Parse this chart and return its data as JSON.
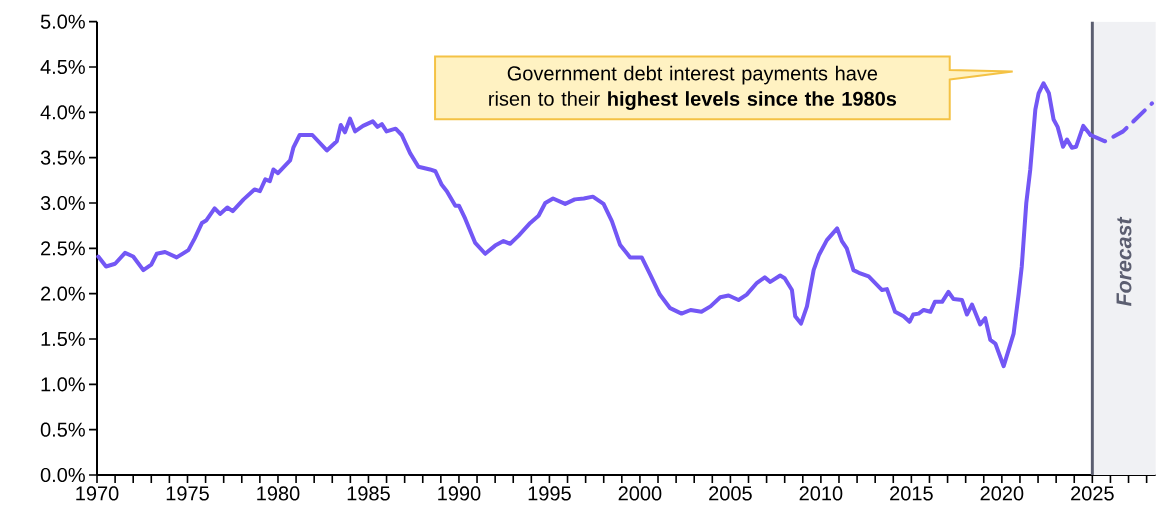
{
  "chart_data": {
    "type": "line",
    "series": [
      {
        "color": "#7357f5",
        "line_style": "solid",
        "x": [
          1970.07,
          1970.5,
          1971.0,
          1971.55,
          1972.0,
          1972.56,
          1973.0,
          1973.3,
          1973.76,
          1974.4,
          1975.05,
          1975.4,
          1975.8,
          1976.05,
          1976.5,
          1976.8,
          1977.2,
          1977.5,
          1978.1,
          1978.7,
          1979.0,
          1979.3,
          1979.55,
          1979.75,
          1980.0,
          1980.67,
          1980.85,
          1981.2,
          1981.9,
          1982.7,
          1983.25,
          1983.47,
          1983.7,
          1983.98,
          1984.26,
          1984.7,
          1985.24,
          1985.5,
          1985.74,
          1986.0,
          1986.5,
          1986.84,
          1987.3,
          1987.76,
          1988.4,
          1988.7,
          1989.05,
          1989.33,
          1989.8,
          1990.0,
          1990.34,
          1990.9,
          1991.45,
          1992.0,
          1992.46,
          1992.83,
          1993.3,
          1993.94,
          1994.4,
          1994.77,
          1995.2,
          1995.87,
          1996.4,
          1996.9,
          1997.4,
          1997.99,
          1998.45,
          1998.9,
          1999.46,
          2000.1,
          2000.57,
          2001.1,
          2001.67,
          2002.3,
          2002.8,
          2003.4,
          2003.9,
          2004.44,
          2004.9,
          2005.45,
          2005.9,
          2006.47,
          2006.9,
          2007.2,
          2007.75,
          2008.0,
          2008.4,
          2008.58,
          2008.9,
          2009.23,
          2009.6,
          2009.9,
          2010.33,
          2010.9,
          2011.16,
          2011.43,
          2011.8,
          2012.1,
          2012.64,
          2013.38,
          2013.65,
          2014.1,
          2014.57,
          2014.9,
          2015.1,
          2015.4,
          2015.68,
          2016.05,
          2016.3,
          2016.7,
          2017.05,
          2017.33,
          2017.8,
          2018.07,
          2018.35,
          2018.8,
          2019.08,
          2019.36,
          2019.64,
          2020.1,
          2020.65,
          2020.93,
          2021.1,
          2021.35,
          2021.57,
          2021.85,
          2022.03,
          2022.3,
          2022.6,
          2022.86,
          2023.08,
          2023.38,
          2023.6,
          2023.87,
          2024.1,
          2024.5,
          2024.9
        ],
        "values": [
          2.41,
          2.3,
          2.33,
          2.45,
          2.41,
          2.26,
          2.32,
          2.44,
          2.46,
          2.4,
          2.48,
          2.61,
          2.78,
          2.81,
          2.94,
          2.88,
          2.95,
          2.91,
          3.04,
          3.15,
          3.13,
          3.26,
          3.24,
          3.37,
          3.33,
          3.47,
          3.61,
          3.75,
          3.75,
          3.58,
          3.68,
          3.86,
          3.78,
          3.93,
          3.79,
          3.85,
          3.9,
          3.84,
          3.87,
          3.79,
          3.82,
          3.75,
          3.55,
          3.4,
          3.37,
          3.35,
          3.2,
          3.13,
          2.97,
          2.97,
          2.83,
          2.56,
          2.44,
          2.53,
          2.58,
          2.55,
          2.64,
          2.78,
          2.86,
          3.0,
          3.05,
          2.99,
          3.04,
          3.05,
          3.07,
          2.99,
          2.8,
          2.54,
          2.4,
          2.4,
          2.21,
          1.99,
          1.84,
          1.78,
          1.82,
          1.8,
          1.86,
          1.96,
          1.98,
          1.93,
          1.99,
          2.12,
          2.18,
          2.13,
          2.2,
          2.17,
          2.04,
          1.75,
          1.67,
          1.86,
          2.26,
          2.43,
          2.59,
          2.72,
          2.58,
          2.5,
          2.26,
          2.23,
          2.19,
          2.04,
          2.05,
          1.8,
          1.75,
          1.69,
          1.77,
          1.78,
          1.82,
          1.8,
          1.91,
          1.91,
          2.02,
          1.94,
          1.93,
          1.77,
          1.88,
          1.66,
          1.73,
          1.49,
          1.45,
          1.2,
          1.56,
          2.0,
          2.3,
          3.0,
          3.37,
          4.03,
          4.21,
          4.32,
          4.21,
          3.92,
          3.84,
          3.62,
          3.7,
          3.61,
          3.62,
          3.85,
          3.75
        ]
      },
      {
        "color": "#7357f5",
        "line_style": "dashed",
        "x": [
          2024.9,
          2025.7,
          2026.7,
          2028.3
        ],
        "values": [
          3.75,
          3.68,
          3.79,
          4.1
        ]
      }
    ],
    "xlim": [
      1970,
      2028.5
    ],
    "xticks": [
      1970,
      {
        "value": 1971,
        "label": null
      },
      {
        "value": 1972,
        "label": null
      },
      {
        "value": 1973,
        "label": null
      },
      {
        "value": 1974,
        "label": null
      },
      1975,
      {
        "value": 1976,
        "label": null
      },
      {
        "value": 1977,
        "label": null
      },
      {
        "value": 1978,
        "label": null
      },
      {
        "value": 1979,
        "label": null
      },
      1980,
      {
        "value": 1981,
        "label": null
      },
      {
        "value": 1982,
        "label": null
      },
      {
        "value": 1983,
        "label": null
      },
      {
        "value": 1984,
        "label": null
      },
      1985,
      {
        "value": 1986,
        "label": null
      },
      {
        "value": 1987,
        "label": null
      },
      {
        "value": 1988,
        "label": null
      },
      {
        "value": 1989,
        "label": null
      },
      1990,
      {
        "value": 1991,
        "label": null
      },
      {
        "value": 1992,
        "label": null
      },
      {
        "value": 1993,
        "label": null
      },
      {
        "value": 1994,
        "label": null
      },
      1995,
      {
        "value": 1996,
        "label": null
      },
      {
        "value": 1997,
        "label": null
      },
      {
        "value": 1998,
        "label": null
      },
      {
        "value": 1999,
        "label": null
      },
      2000,
      {
        "value": 2001,
        "label": null
      },
      {
        "value": 2002,
        "label": null
      },
      {
        "value": 2003,
        "label": null
      },
      {
        "value": 2004,
        "label": null
      },
      2005,
      {
        "value": 2006,
        "label": null
      },
      {
        "value": 2007,
        "label": null
      },
      {
        "value": 2008,
        "label": null
      },
      {
        "value": 2009,
        "label": null
      },
      2010,
      {
        "value": 2011,
        "label": null
      },
      {
        "value": 2012,
        "label": null
      },
      {
        "value": 2013,
        "label": null
      },
      {
        "value": 2014,
        "label": null
      },
      2015,
      {
        "value": 2016,
        "label": null
      },
      {
        "value": 2017,
        "label": null
      },
      {
        "value": 2018,
        "label": null
      },
      {
        "value": 2019,
        "label": null
      },
      2020,
      {
        "value": 2021,
        "label": null
      },
      {
        "value": 2022,
        "label": null
      },
      {
        "value": 2023,
        "label": null
      },
      {
        "value": 2024,
        "label": null
      },
      2025,
      {
        "value": 2026,
        "label": null
      },
      {
        "value": 2027,
        "label": null
      },
      {
        "value": 2028,
        "label": null
      }
    ],
    "ylim": [
      0,
      5
    ],
    "yticks": [
      {
        "value": 0,
        "label": "0.0%"
      },
      {
        "value": 0.5,
        "label": "0.5%"
      },
      {
        "value": 1,
        "label": "1.0%"
      },
      {
        "value": 1.5,
        "label": "1.5%"
      },
      {
        "value": 2,
        "label": "2.0%"
      },
      {
        "value": 2.5,
        "label": "2.5%"
      },
      {
        "value": 3,
        "label": "3.0%"
      },
      {
        "value": 3.5,
        "label": "3.5%"
      },
      {
        "value": 4,
        "label": "4.0%"
      },
      {
        "value": 4.5,
        "label": "4.5%"
      },
      {
        "value": 5,
        "label": "5.0%"
      }
    ],
    "bands": [
      {
        "axis": "x",
        "from": 2025,
        "to": 2028.5,
        "label": "Forecast",
        "color": "#f0f1f4"
      }
    ],
    "ref_lines": [
      {
        "axis": "x",
        "value": 2025,
        "color": "#5b5e70"
      }
    ],
    "annotations": [
      "Government debt interest payments have risen to their **highest levels since the 1980s**"
    ],
    "marker": "none",
    "grid": false,
    "legend": false
  }
}
